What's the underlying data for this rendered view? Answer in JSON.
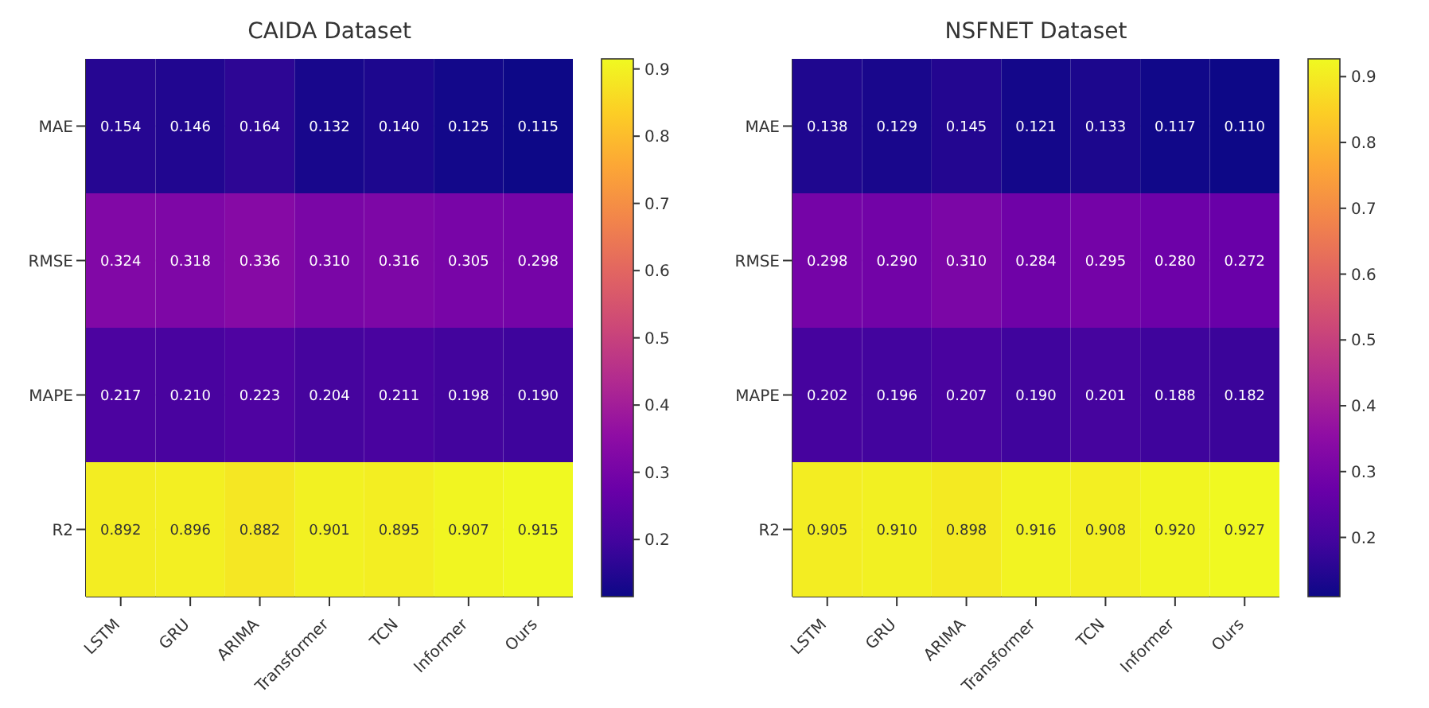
{
  "chart_data": [
    {
      "type": "heatmap",
      "title": "CAIDA Dataset",
      "categories": [
        "LSTM",
        "GRU",
        "ARIMA",
        "Transformer",
        "TCN",
        "Informer",
        "Ours"
      ],
      "y_categories": [
        "MAE",
        "RMSE",
        "MAPE",
        "R2"
      ],
      "cells": [
        [
          0.154,
          0.146,
          0.164,
          0.132,
          0.14,
          0.125,
          0.115
        ],
        [
          0.324,
          0.318,
          0.336,
          0.31,
          0.316,
          0.305,
          0.298
        ],
        [
          0.217,
          0.21,
          0.223,
          0.204,
          0.211,
          0.198,
          0.19
        ],
        [
          0.892,
          0.896,
          0.882,
          0.901,
          0.895,
          0.907,
          0.915
        ]
      ],
      "cell_labels": [
        [
          "0.154",
          "0.146",
          "0.164",
          "0.132",
          "0.140",
          "0.125",
          "0.115"
        ],
        [
          "0.324",
          "0.318",
          "0.336",
          "0.310",
          "0.316",
          "0.305",
          "0.298"
        ],
        [
          "0.217",
          "0.210",
          "0.223",
          "0.204",
          "0.211",
          "0.198",
          "0.190"
        ],
        [
          "0.892",
          "0.896",
          "0.882",
          "0.901",
          "0.895",
          "0.907",
          "0.915"
        ]
      ],
      "clim": [
        0.115,
        0.915
      ],
      "cticks": [
        0.2,
        0.3,
        0.4,
        0.5,
        0.6,
        0.7,
        0.8,
        0.9
      ],
      "data_labels": true,
      "grid": true
    },
    {
      "type": "heatmap",
      "title": "NSFNET Dataset",
      "categories": [
        "LSTM",
        "GRU",
        "ARIMA",
        "Transformer",
        "TCN",
        "Informer",
        "Ours"
      ],
      "y_categories": [
        "MAE",
        "RMSE",
        "MAPE",
        "R2"
      ],
      "cells": [
        [
          0.138,
          0.129,
          0.145,
          0.121,
          0.133,
          0.117,
          0.11
        ],
        [
          0.298,
          0.29,
          0.31,
          0.284,
          0.295,
          0.28,
          0.272
        ],
        [
          0.202,
          0.196,
          0.207,
          0.19,
          0.201,
          0.188,
          0.182
        ],
        [
          0.905,
          0.91,
          0.898,
          0.916,
          0.908,
          0.92,
          0.927
        ]
      ],
      "cell_labels": [
        [
          "0.138",
          "0.129",
          "0.145",
          "0.121",
          "0.133",
          "0.117",
          "0.110"
        ],
        [
          "0.298",
          "0.290",
          "0.310",
          "0.284",
          "0.295",
          "0.280",
          "0.272"
        ],
        [
          "0.202",
          "0.196",
          "0.207",
          "0.190",
          "0.201",
          "0.188",
          "0.182"
        ],
        [
          "0.905",
          "0.910",
          "0.898",
          "0.916",
          "0.908",
          "0.920",
          "0.927"
        ]
      ],
      "clim": [
        0.11,
        0.927
      ],
      "cticks": [
        0.2,
        0.3,
        0.4,
        0.5,
        0.6,
        0.7,
        0.8,
        0.9
      ],
      "data_labels": true,
      "grid": true
    }
  ]
}
